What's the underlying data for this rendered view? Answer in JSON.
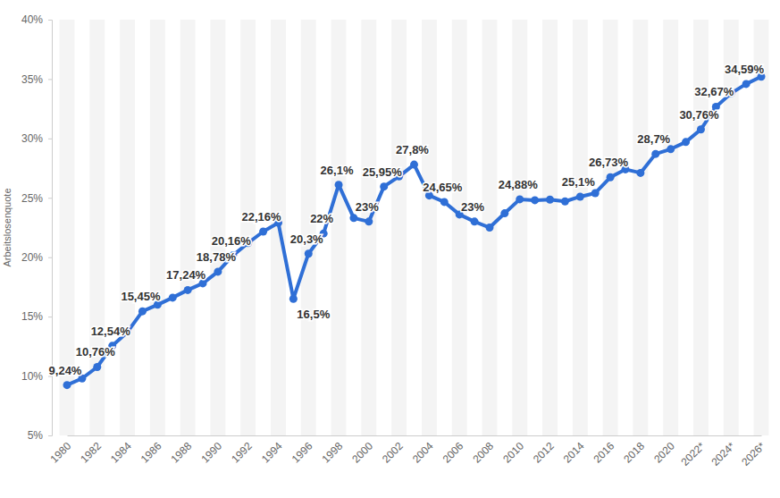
{
  "chart_data": {
    "type": "line",
    "y_label": "Arbeitslosenquote",
    "categories": [
      "1980",
      null,
      "1982",
      null,
      "1984",
      null,
      "1986",
      null,
      "1988",
      null,
      "1990",
      null,
      "1992",
      null,
      "1994",
      null,
      "1996",
      null,
      "1998",
      null,
      "2000",
      null,
      "2002",
      null,
      "2004",
      null,
      "2006",
      null,
      "2008",
      null,
      "2010",
      null,
      "2012",
      null,
      "2014",
      null,
      "2016",
      null,
      "2018",
      null,
      "2020",
      null,
      "2022*",
      null,
      "2024*",
      null,
      "2026*"
    ],
    "values": [
      9.24,
      9.8,
      10.76,
      12.54,
      13.7,
      15.45,
      16.0,
      16.6,
      17.24,
      17.8,
      18.78,
      20.16,
      21.2,
      22.16,
      22.9,
      16.5,
      20.3,
      22,
      26.1,
      23.3,
      23,
      25.95,
      26.8,
      27.8,
      25.2,
      24.65,
      23.6,
      23,
      22.5,
      23.7,
      24.88,
      24.8,
      24.85,
      24.7,
      25.1,
      25.4,
      26.73,
      27.4,
      27.1,
      28.7,
      29.1,
      29.7,
      30.76,
      32.67,
      33.8,
      34.59,
      35.2
    ],
    "value_labels": [
      "9,24%",
      null,
      "10,76%",
      "12,54%",
      null,
      "15,45%",
      null,
      null,
      "17,24%",
      null,
      "18,78%",
      "20,16%",
      null,
      "22,16%",
      null,
      "16,5%",
      "20,3%",
      "22%",
      "26,1%",
      null,
      "23%",
      "25,95%",
      null,
      "27,8%",
      null,
      "24,65%",
      null,
      "23%",
      null,
      null,
      "24,88%",
      null,
      null,
      null,
      "25,1%",
      null,
      "26,73%",
      null,
      null,
      "28,7%",
      null,
      null,
      "30,76%",
      "32,67%",
      null,
      "34,59%",
      null
    ],
    "color": "#2f6fd6",
    "marker": "circle",
    "data_labels": true,
    "grid": false,
    "ylim": [
      5,
      40
    ],
    "yticks": [
      {
        "value": 5,
        "label": "5%"
      },
      {
        "value": 10,
        "label": "10%"
      },
      {
        "value": 15,
        "label": "15%"
      },
      {
        "value": 20,
        "label": "20%"
      },
      {
        "value": 25,
        "label": "25%"
      },
      {
        "value": 30,
        "label": "30%"
      },
      {
        "value": 35,
        "label": "35%"
      },
      {
        "value": 40,
        "label": "40%"
      }
    ]
  }
}
